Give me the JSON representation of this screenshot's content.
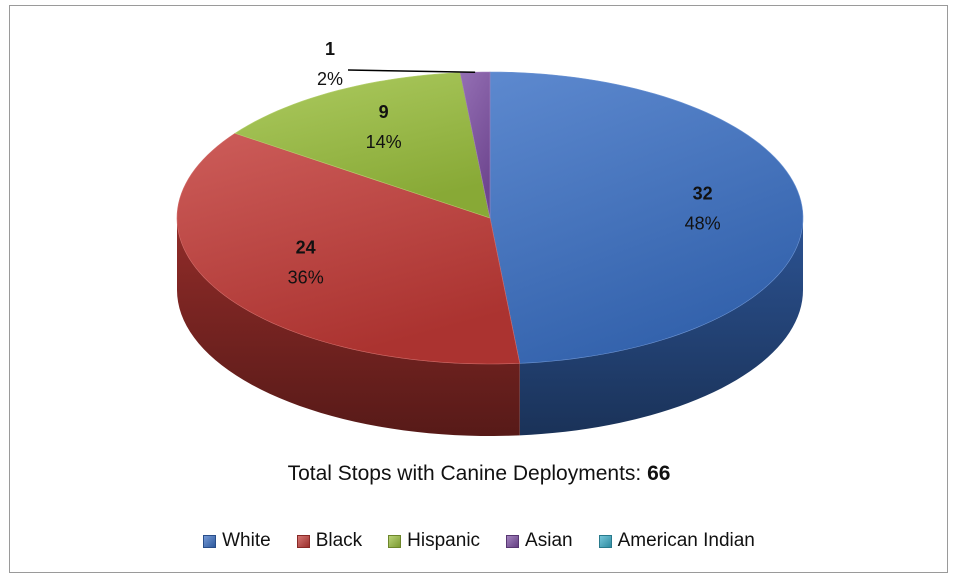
{
  "chart_data": {
    "type": "pie",
    "style": "3d",
    "categories": [
      "White",
      "Black",
      "Hispanic",
      "Asian",
      "American Indian"
    ],
    "values": [
      32,
      24,
      9,
      1,
      0
    ],
    "percent_labels": [
      "48%",
      "36%",
      "14%",
      "2%",
      ""
    ],
    "value_labels": [
      "32",
      "24",
      "9",
      "1",
      ""
    ],
    "colors": [
      "#3a6fc4",
      "#c23a36",
      "#9bc03d",
      "#7d4fa3",
      "#3aaec8"
    ],
    "title": "",
    "legend_placement": "bottom"
  },
  "total": {
    "label": "Total Stops with Canine Deployments: ",
    "value": "66"
  }
}
